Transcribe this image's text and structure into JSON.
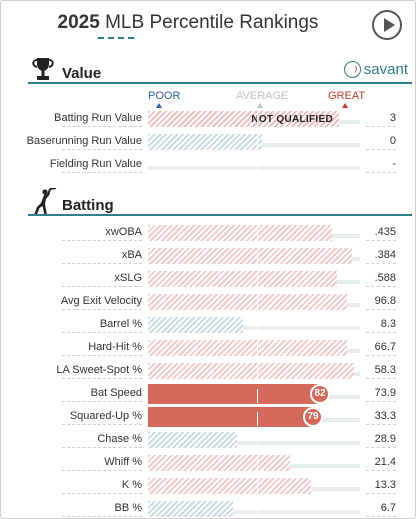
{
  "header": {
    "year": "2025",
    "title": "MLB Percentile Rankings"
  },
  "colors": {
    "accent": "#2f7d8e",
    "poor": "#2b5ea8",
    "great": "#c0392b",
    "bar_solid": "#d46a5b"
  },
  "value_section": {
    "title": "Value",
    "brand": "savant",
    "scale": {
      "poor": "POOR",
      "average": "AVERAGE",
      "great": "GREAT"
    },
    "rows": [
      {
        "label": "Batting Run Value",
        "value": "3",
        "percentile": 90,
        "style": "nq",
        "note": "NOT QUALIFIED"
      },
      {
        "label": "Baserunning Run Value",
        "value": "0",
        "percentile": 54,
        "style": "blue"
      },
      {
        "label": "Fielding Run Value",
        "value": "-",
        "percentile": null,
        "style": "none"
      }
    ]
  },
  "batting_section": {
    "title": "Batting",
    "rows": [
      {
        "label": "xwOBA",
        "value": ".435",
        "percentile": 87,
        "style": "red"
      },
      {
        "label": "xBA",
        "value": ".384",
        "percentile": 96,
        "style": "red"
      },
      {
        "label": "xSLG",
        "value": ".588",
        "percentile": 89,
        "style": "red"
      },
      {
        "label": "Avg Exit Velocity",
        "value": "96.8",
        "percentile": 94,
        "style": "red"
      },
      {
        "label": "Barrel %",
        "value": "8.3",
        "percentile": 45,
        "style": "blue"
      },
      {
        "label": "Hard-Hit %",
        "value": "66.7",
        "percentile": 94,
        "style": "red"
      },
      {
        "label": "LA Sweet-Spot %",
        "value": "58.3",
        "percentile": 97,
        "style": "red"
      },
      {
        "label": "Bat Speed",
        "value": "73.9",
        "percentile": 82,
        "style": "solid",
        "badge": "82"
      },
      {
        "label": "Squared-Up %",
        "value": "33.3",
        "percentile": 79,
        "style": "solid",
        "badge": "79"
      },
      {
        "label": "Chase %",
        "value": "28.9",
        "percentile": 42,
        "style": "blue"
      },
      {
        "label": "Whiff %",
        "value": "21.4",
        "percentile": 67,
        "style": "red"
      },
      {
        "label": "K %",
        "value": "13.3",
        "percentile": 77,
        "style": "red"
      },
      {
        "label": "BB %",
        "value": "6.7",
        "percentile": 40,
        "style": "blue"
      }
    ]
  }
}
